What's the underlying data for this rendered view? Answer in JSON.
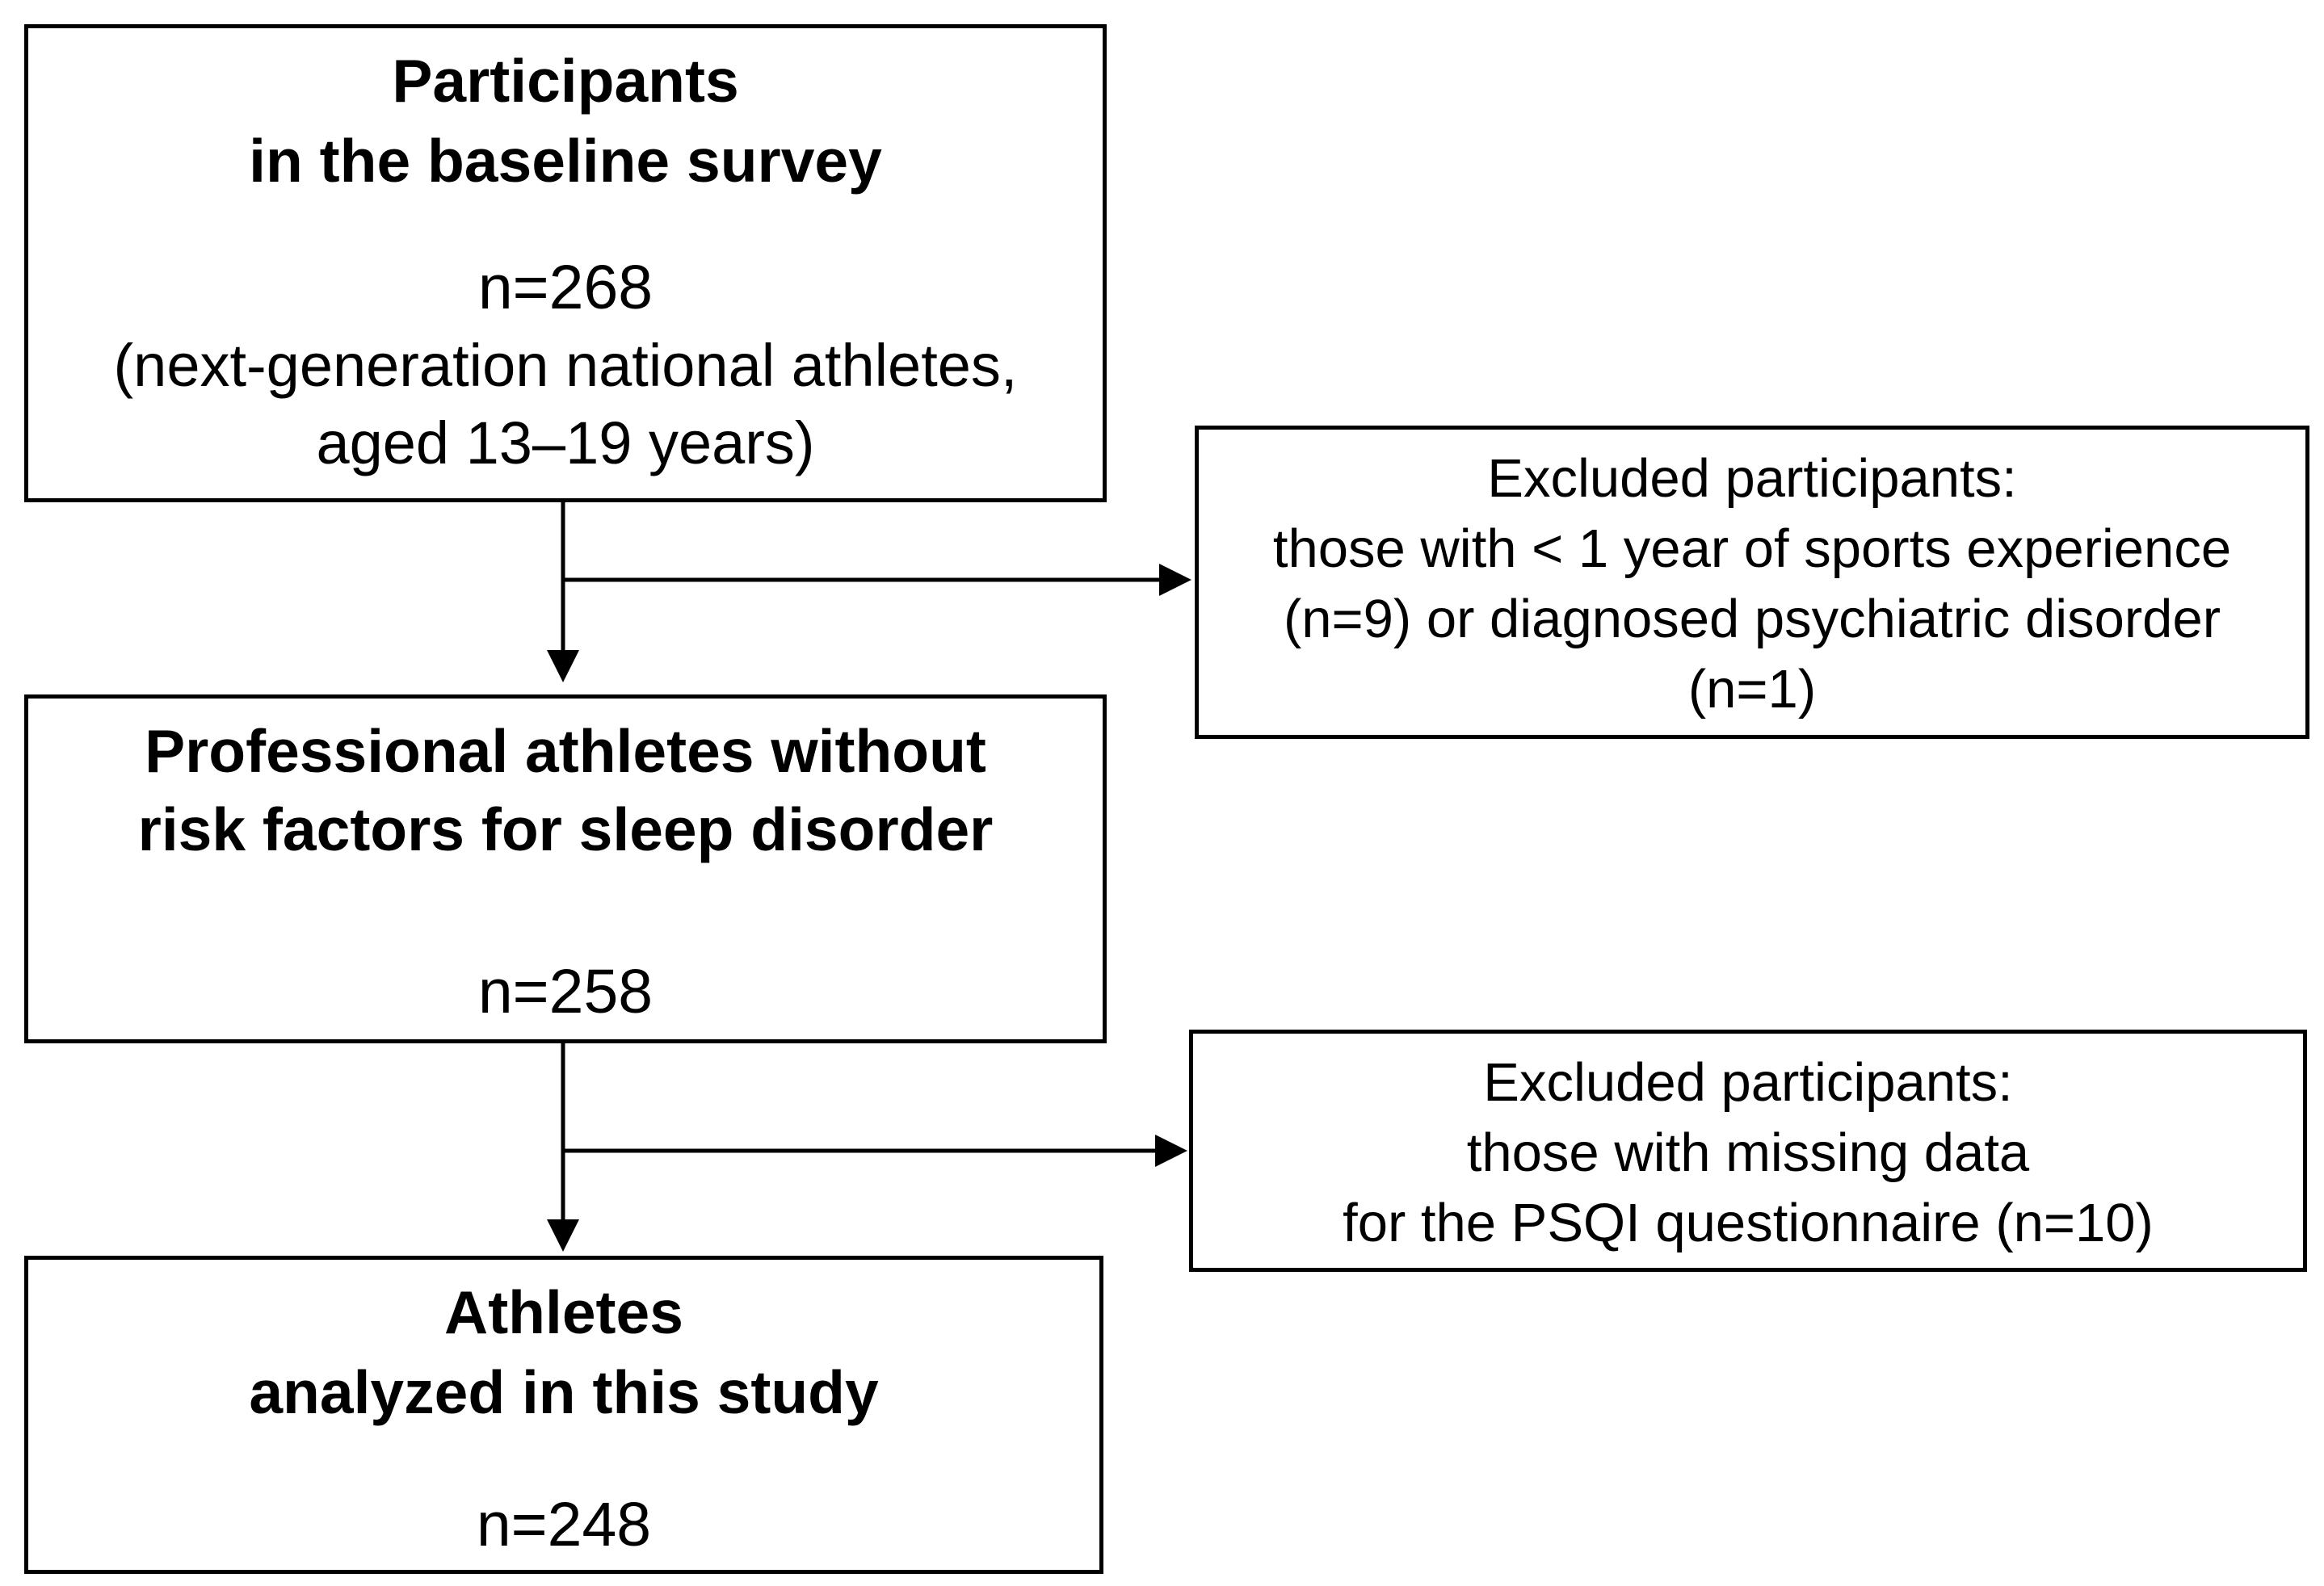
{
  "boxes": {
    "baseline": {
      "title_line1": "Participants",
      "title_line2": "in the baseline survey",
      "count": "n=268",
      "detail_line1": "(next-generation national athletes,",
      "detail_line2": "aged 13–19 years)"
    },
    "professional": {
      "title_line1": "Professional athletes without",
      "title_line2": "risk factors for sleep disorder",
      "count": "n=258"
    },
    "analyzed": {
      "title_line1": "Athletes",
      "title_line2": "analyzed in this study",
      "count": "n=248"
    },
    "exclusion_1": {
      "line1": "Excluded participants:",
      "line2": "those with < 1 year of sports experience",
      "line3": "(n=9) or diagnosed psychiatric disorder",
      "line4": "(n=1)"
    },
    "exclusion_2": {
      "line1": "Excluded participants:",
      "line2": "those with missing data",
      "line3": "for the PSQI questionnaire (n=10)"
    }
  },
  "colors": {
    "stroke": "#000000",
    "background": "#ffffff"
  }
}
